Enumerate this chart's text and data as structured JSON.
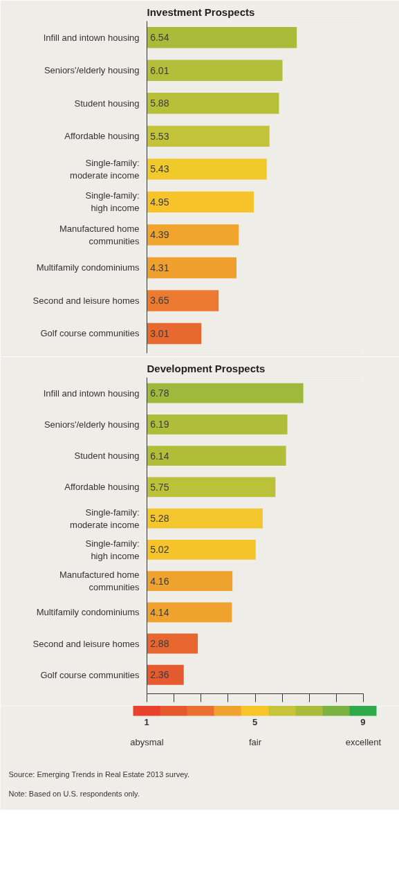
{
  "chart_data": [
    {
      "type": "bar",
      "orientation": "horizontal",
      "title": "Investment Prospects",
      "categories": [
        "Infill and intown housing",
        "Seniors'/elderly housing",
        "Student housing",
        "Affordable housing",
        "Single-family:\nmoderate income",
        "Single-family:\nhigh income",
        "Manufactured home\ncommunities",
        "Multifamily condominiums",
        "Second and leisure homes",
        "Golf course communities"
      ],
      "values": [
        6.54,
        6.01,
        5.88,
        5.53,
        5.43,
        4.95,
        4.39,
        4.31,
        3.65,
        3.01
      ],
      "colors": [
        "#a9bc3a",
        "#b3bf3a",
        "#b8c03a",
        "#c4c43a",
        "#f0c92a",
        "#f6c32a",
        "#f0a42e",
        "#f0a02e",
        "#ec7a30",
        "#e8692f"
      ],
      "xlim": [
        1,
        9
      ],
      "tick_labels": "y",
      "data_labels": true
    },
    {
      "type": "bar",
      "orientation": "horizontal",
      "title": "Development Prospects",
      "categories": [
        "Infill and intown housing",
        "Seniors'/elderly housing",
        "Student housing",
        "Affordable housing",
        "Single-family:\nmoderate income",
        "Single-family:\nhigh income",
        "Manufactured home\ncommunities",
        "Multifamily condominiums",
        "Second and leisure homes",
        "Golf course communities"
      ],
      "values": [
        6.78,
        6.19,
        6.14,
        5.75,
        5.28,
        5.02,
        4.16,
        4.14,
        2.88,
        2.36
      ],
      "colors": [
        "#9fb93c",
        "#aebd3a",
        "#b0be3a",
        "#bcc13a",
        "#f2c62c",
        "#f5c42b",
        "#efa22e",
        "#efa22e",
        "#e8662f",
        "#e55a2f"
      ],
      "xlim": [
        1,
        9
      ],
      "xticks": [
        {
          "value": 1,
          "label": null
        },
        {
          "value": 2,
          "label": null
        },
        {
          "value": 3,
          "label": null
        },
        {
          "value": 4,
          "label": null
        },
        {
          "value": 5,
          "label": null
        },
        {
          "value": 6,
          "label": null
        },
        {
          "value": 7,
          "label": null
        },
        {
          "value": 8,
          "label": null
        },
        {
          "value": 9,
          "label": null
        }
      ],
      "tick_labels": "y",
      "data_labels": true,
      "clim": [
        1,
        9
      ],
      "cticks": [
        1,
        5,
        9
      ],
      "annotations": [
        "abysmal",
        "fair",
        "excellent",
        "Source: Emerging Trends in Real Estate 2013 survey.",
        "Note: Based on U.S. respondents only."
      ]
    }
  ]
}
